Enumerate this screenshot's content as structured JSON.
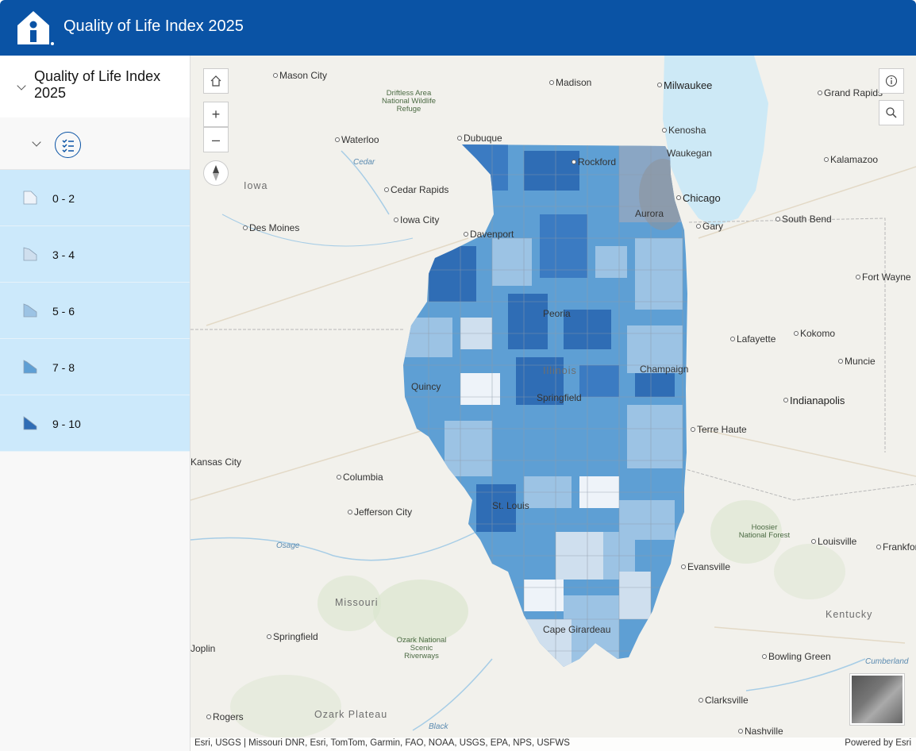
{
  "header": {
    "title": "Quality of Life Index 2025"
  },
  "panel": {
    "title": "Quality of Life Index 2025"
  },
  "legend": {
    "items": [
      {
        "label": "0 - 2",
        "color": "#eef3f9"
      },
      {
        "label": "3 - 4",
        "color": "#cfdfee"
      },
      {
        "label": "5 - 6",
        "color": "#9cc3e4"
      },
      {
        "label": "7 - 8",
        "color": "#5e9fd4"
      },
      {
        "label": "9 - 10",
        "color": "#2f6db5"
      }
    ]
  },
  "map": {
    "places": [
      {
        "name": "Mason City"
      },
      {
        "name": "Madison"
      },
      {
        "name": "Milwaukee"
      },
      {
        "name": "Grand Rapids"
      },
      {
        "name": "Driftless Area National Wildlife Refuge"
      },
      {
        "name": "Waterloo"
      },
      {
        "name": "Dubuque"
      },
      {
        "name": "Kenosha"
      },
      {
        "name": "Waukegan"
      },
      {
        "name": "Rockford"
      },
      {
        "name": "Kalamazoo"
      },
      {
        "name": "Iowa"
      },
      {
        "name": "Cedar Rapids"
      },
      {
        "name": "Chicago"
      },
      {
        "name": "Aurora"
      },
      {
        "name": "Iowa City"
      },
      {
        "name": "Des Moines"
      },
      {
        "name": "Davenport"
      },
      {
        "name": "Gary"
      },
      {
        "name": "South Bend"
      },
      {
        "name": "Fort Wayne"
      },
      {
        "name": "Peoria"
      },
      {
        "name": "Lafayette"
      },
      {
        "name": "Kokomo"
      },
      {
        "name": "Illinois"
      },
      {
        "name": "Champaign"
      },
      {
        "name": "Muncie"
      },
      {
        "name": "Quincy"
      },
      {
        "name": "Springfield"
      },
      {
        "name": "Indianapolis"
      },
      {
        "name": "Terre Haute"
      },
      {
        "name": "Kansas City"
      },
      {
        "name": "Columbia"
      },
      {
        "name": "St. Louis"
      },
      {
        "name": "Jefferson City"
      },
      {
        "name": "Osage"
      },
      {
        "name": "Hoosier National Forest"
      },
      {
        "name": "Louisville"
      },
      {
        "name": "Frankfort"
      },
      {
        "name": "Evansville"
      },
      {
        "name": "Missouri"
      },
      {
        "name": "Kentucky"
      },
      {
        "name": "Springfield"
      },
      {
        "name": "Ozark National Scenic Riverways"
      },
      {
        "name": "Cape Girardeau"
      },
      {
        "name": "Bowling Green"
      },
      {
        "name": "Cumberland"
      },
      {
        "name": "Joplin"
      },
      {
        "name": "Clarksville"
      },
      {
        "name": "Rogers"
      },
      {
        "name": "Ozark Plateau"
      },
      {
        "name": "Black"
      },
      {
        "name": "Nashville"
      },
      {
        "name": "Cedar"
      }
    ],
    "attribution": "Esri, USGS | Missouri DNR, Esri, TomTom, Garmin, FAO, NOAA, USGS, EPA, NPS, USFWS",
    "powered_by": "Powered by Esri",
    "zoom_in": "+",
    "zoom_out": "–"
  }
}
